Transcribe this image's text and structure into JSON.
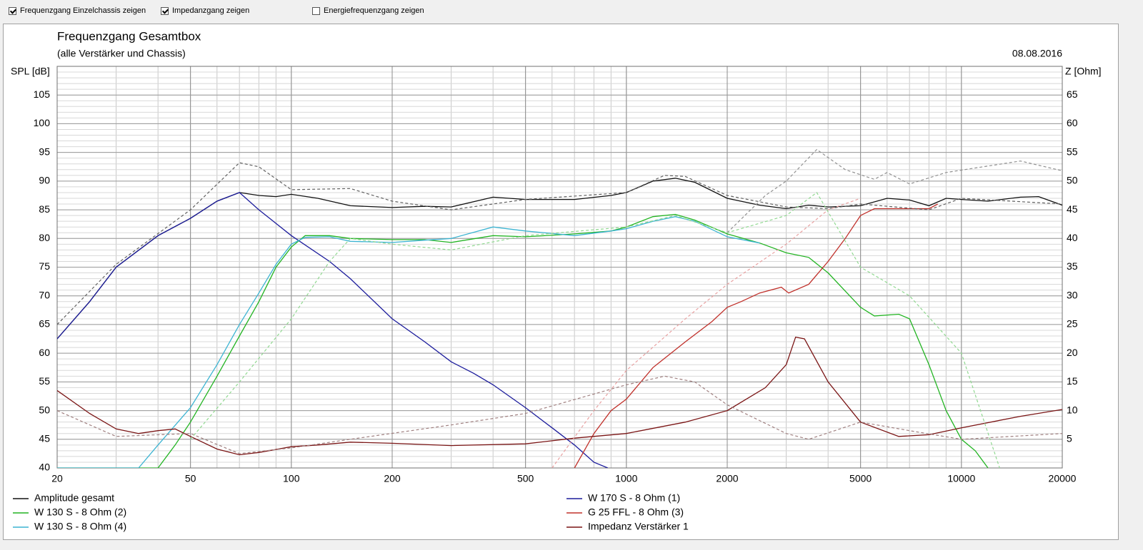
{
  "toolbar": {
    "checkboxes": [
      {
        "label": "Frequenzgang Einzelchassis zeigen",
        "checked": true
      },
      {
        "label": "Impedanzgang zeigen",
        "checked": true
      },
      {
        "label": "Energiefrequenzgang zeigen",
        "checked": false
      }
    ]
  },
  "chart_data": {
    "type": "line",
    "title": "Frequenzgang Gesamtbox",
    "subtitle": "(alle Verstärker und Chassis)",
    "date": "08.08.2016",
    "y_label": "SPL [dB]",
    "y2_label": "Z [Ohm]",
    "x_scale": "log",
    "xlim": [
      20,
      20000
    ],
    "xticks": [
      20,
      50,
      100,
      200,
      500,
      1000,
      2000,
      5000,
      10000,
      20000
    ],
    "ylim": [
      40,
      110
    ],
    "yticks": [
      40,
      45,
      50,
      55,
      60,
      65,
      70,
      75,
      80,
      85,
      90,
      95,
      100,
      105
    ],
    "y2lim": [
      0,
      70
    ],
    "y2ticks": [
      5,
      10,
      15,
      20,
      25,
      30,
      35,
      40,
      45,
      50,
      55,
      60,
      65
    ],
    "grid": true,
    "minor_grid": true,
    "legend_position": "bottom",
    "series": [
      {
        "name": "Amplitude gesamt",
        "color": "#101010",
        "x": [
          20,
          25,
          30,
          40,
          50,
          60,
          70,
          80,
          90,
          100,
          120,
          150,
          200,
          250,
          300,
          400,
          500,
          700,
          900,
          1000,
          1200,
          1400,
          1600,
          2000,
          2500,
          3000,
          3500,
          4000,
          5000,
          6000,
          7000,
          8000,
          9000,
          10000,
          12000,
          15000,
          17000,
          20000
        ],
        "values": [
          62.5,
          69,
          75,
          80.5,
          83.5,
          86.5,
          88,
          87.5,
          87.3,
          87.7,
          87,
          85.7,
          85.4,
          85.6,
          85.5,
          87.2,
          86.8,
          86.8,
          87.5,
          88,
          90,
          90.5,
          89.8,
          87,
          85.8,
          85.2,
          85.8,
          85.5,
          85.7,
          87,
          86.7,
          85.7,
          87,
          86.8,
          86.5,
          87.2,
          87.3,
          85.8
        ]
      },
      {
        "name": "W 170 S - 8 Ohm (1)",
        "color": "#1c1c9c",
        "x": [
          20,
          25,
          30,
          40,
          50,
          60,
          70,
          80,
          100,
          130,
          150,
          200,
          250,
          300,
          350,
          400,
          500,
          600,
          700,
          800,
          880
        ],
        "values": [
          62.5,
          69,
          75,
          80.5,
          83.5,
          86.5,
          88,
          85,
          80.5,
          76,
          73,
          66,
          62,
          58.5,
          56.5,
          54.5,
          50.5,
          47,
          44,
          41,
          40
        ]
      },
      {
        "name": "W 130 S - 8 Ohm (2)",
        "color": "#22b422",
        "x": [
          20,
          40,
          45,
          50,
          60,
          70,
          80,
          90,
          100,
          110,
          130,
          150,
          200,
          250,
          300,
          400,
          500,
          700,
          900,
          1000,
          1200,
          1400,
          1600,
          2000,
          2500,
          3000,
          3500,
          4000,
          5000,
          5500,
          6500,
          7000,
          8000,
          9000,
          10000,
          11000,
          12000
        ],
        "values": [
          40,
          40,
          44,
          48,
          56,
          63,
          69,
          75,
          78.5,
          80.5,
          80.5,
          80,
          79.8,
          79.8,
          79.3,
          80.5,
          80.3,
          80.8,
          81.3,
          82,
          83.8,
          84.2,
          83.2,
          80.8,
          79.2,
          77.5,
          76.7,
          74,
          68,
          66.5,
          66.8,
          66,
          58,
          50,
          45,
          43,
          40
        ]
      },
      {
        "name": "G 25 FFL - 8 Ohm (3)",
        "color": "#c0302a",
        "x": [
          700,
          800,
          900,
          1000,
          1200,
          1500,
          1800,
          2000,
          2200,
          2500,
          2900,
          3050,
          3500,
          4000,
          4500,
          5000,
          5500,
          7000,
          8000,
          8500
        ],
        "values": [
          40,
          46,
          50,
          52,
          57.5,
          62,
          65.5,
          68,
          69,
          70.5,
          71.5,
          70.5,
          72,
          76,
          80,
          84,
          85.2,
          85.2,
          85.2,
          86
        ]
      },
      {
        "name": "W 130 S - 8 Ohm (4)",
        "color": "#3cb4d2",
        "x": [
          20,
          35,
          40,
          50,
          60,
          70,
          80,
          90,
          100,
          110,
          130,
          150,
          200,
          250,
          300,
          400,
          500,
          700,
          900,
          1000,
          1200,
          1400,
          1600,
          2000,
          2500
        ],
        "values": [
          40,
          40,
          44,
          50.5,
          58,
          65,
          70.5,
          75.5,
          79,
          80.2,
          80.3,
          79.5,
          79.3,
          79.7,
          80,
          82,
          81.3,
          80.5,
          81.3,
          81.7,
          83,
          83.8,
          83,
          80.3,
          79.2
        ]
      },
      {
        "name": "Impedanz Verstärker 1",
        "color": "#7a1414",
        "axis": "y2",
        "x": [
          20,
          25,
          30,
          35,
          40,
          45,
          50,
          60,
          70,
          80,
          100,
          120,
          150,
          200,
          300,
          500,
          700,
          1000,
          1500,
          2000,
          2600,
          3000,
          3200,
          3400,
          4000,
          5000,
          6500,
          8000,
          10000,
          15000,
          20000
        ],
        "values": [
          13.5,
          9.5,
          6.8,
          6,
          6.5,
          6.8,
          5.5,
          3.3,
          2.3,
          2.7,
          3.7,
          4,
          4.5,
          4.3,
          3.9,
          4.2,
          5.2,
          6,
          8,
          10,
          14,
          18,
          22.8,
          22.5,
          15,
          8,
          5.5,
          5.8,
          7,
          9,
          10.2
        ]
      },
      {
        "color": "#606060",
        "dashed": true,
        "x": [
          20,
          30,
          50,
          70,
          80,
          100,
          150,
          200,
          300,
          500,
          1000,
          1300,
          1500,
          2000,
          3000,
          4000,
          5000,
          8000,
          10000,
          20000
        ],
        "values": [
          65,
          75.5,
          85,
          93.2,
          92.5,
          88.5,
          88.7,
          86.5,
          85,
          86.8,
          88,
          91,
          90.8,
          87.5,
          85.5,
          85.2,
          86,
          85,
          87,
          86
        ]
      },
      {
        "color": "#909090",
        "dashed": true,
        "x": [
          2000,
          2600,
          3000,
          3700,
          4500,
          5500,
          6000,
          7000,
          9000,
          15000,
          20000
        ],
        "values": [
          81,
          87.5,
          90,
          95.5,
          92,
          90.3,
          91.5,
          89.5,
          91.5,
          93.5,
          91.8
        ]
      },
      {
        "color": "#a08080",
        "dashed": true,
        "axis": "y2",
        "x": [
          20,
          30,
          50,
          70,
          100,
          150,
          300,
          500,
          1000,
          1300,
          1600,
          2000,
          3000,
          3500,
          5000,
          7000,
          10000,
          20000
        ],
        "values": [
          10,
          5.5,
          6,
          2.5,
          3.5,
          5,
          7.5,
          9.5,
          14.5,
          16,
          15,
          11,
          6,
          5,
          8,
          6.5,
          5,
          6
        ]
      },
      {
        "color": "#e8a0a0",
        "dashed": true,
        "x": [
          600,
          800,
          1000,
          1500,
          2000,
          3000,
          4000,
          5000
        ],
        "values": [
          40,
          50,
          57,
          66,
          72,
          79,
          85,
          87
        ]
      },
      {
        "color": "#90d890",
        "dashed": true,
        "x": [
          50,
          70,
          100,
          130,
          150,
          200,
          300,
          500,
          1000,
          1400,
          2000,
          3000,
          3700,
          5000,
          7000,
          10000,
          13000
        ],
        "values": [
          45,
          55,
          66,
          76,
          80,
          79,
          78,
          80.5,
          82,
          84,
          81,
          84,
          88,
          75,
          70,
          60,
          40
        ]
      }
    ]
  }
}
